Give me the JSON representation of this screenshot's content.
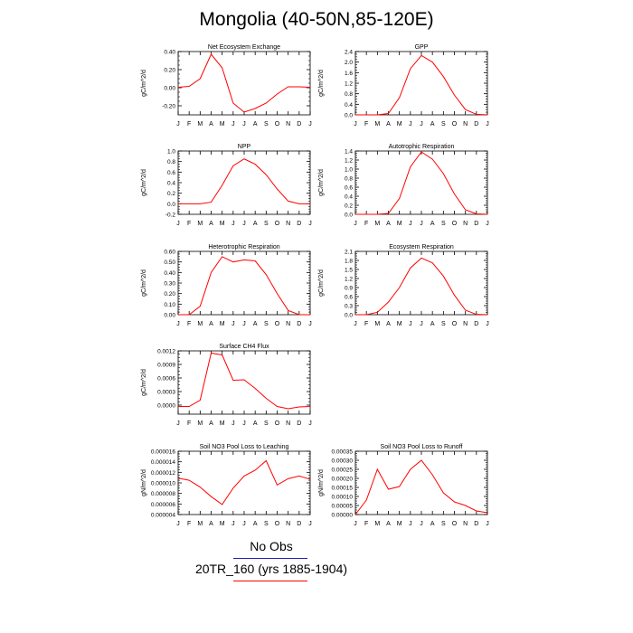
{
  "page_title": "Mongolia (40-50N,85-120E)",
  "legend": {
    "entries": [
      {
        "label": "No Obs",
        "color": "#1f1fb4"
      },
      {
        "label": "20TR_160 (yrs 1885-1904)",
        "color": "#ff0000"
      }
    ]
  },
  "colors": {
    "series": "#ff0000",
    "axis": "#000000"
  },
  "chart_data": [
    {
      "type": "line",
      "title": "Net Ecosystem Exchange",
      "ylabel": "gC/m^2/d",
      "x": [
        "J",
        "F",
        "M",
        "A",
        "M",
        "J",
        "J",
        "A",
        "S",
        "O",
        "N",
        "D",
        "J"
      ],
      "ylim": [
        -0.3,
        0.4
      ],
      "yticks": [
        -0.2,
        0.0,
        0.2,
        0.4
      ],
      "yticklabels": [
        "-0.20",
        "0.00",
        "0.20",
        "0.40"
      ],
      "series": [
        {
          "values": [
            0.005,
            0.015,
            0.1,
            0.37,
            0.22,
            -0.17,
            -0.27,
            -0.23,
            -0.17,
            -0.07,
            0.01,
            0.01,
            0.005
          ]
        }
      ]
    },
    {
      "type": "line",
      "title": "GPP",
      "ylabel": "gC/m^2/d",
      "x": [
        "J",
        "F",
        "M",
        "A",
        "M",
        "J",
        "J",
        "A",
        "S",
        "O",
        "N",
        "D",
        "J"
      ],
      "ylim": [
        0.0,
        2.4
      ],
      "yticks": [
        0.0,
        0.4,
        0.8,
        1.2,
        1.6,
        2.0,
        2.4
      ],
      "yticklabels": [
        "0.0",
        "0.4",
        "0.8",
        "1.2",
        "1.6",
        "2.0",
        "2.4"
      ],
      "series": [
        {
          "values": [
            0.0,
            0.0,
            0.0,
            0.05,
            0.65,
            1.75,
            2.25,
            2.0,
            1.45,
            0.75,
            0.2,
            0.02,
            0.0
          ]
        }
      ]
    },
    {
      "type": "line",
      "title": "NPP",
      "ylabel": "gC/m^2/d",
      "x": [
        "J",
        "F",
        "M",
        "A",
        "M",
        "J",
        "J",
        "A",
        "S",
        "O",
        "N",
        "D",
        "J"
      ],
      "ylim": [
        -0.2,
        1.0
      ],
      "yticks": [
        -0.2,
        0.0,
        0.2,
        0.4,
        0.6,
        0.8,
        1.0
      ],
      "yticklabels": [
        "-0.2",
        "0.0",
        "0.2",
        "0.4",
        "0.6",
        "0.8",
        "1.0"
      ],
      "series": [
        {
          "values": [
            0.0,
            0.0,
            0.0,
            0.03,
            0.35,
            0.72,
            0.85,
            0.75,
            0.55,
            0.28,
            0.05,
            0.0,
            0.0
          ]
        }
      ]
    },
    {
      "type": "line",
      "title": "Autotrophic Respiration",
      "ylabel": "gC/m^2/d",
      "x": [
        "J",
        "F",
        "M",
        "A",
        "M",
        "J",
        "J",
        "A",
        "S",
        "O",
        "N",
        "D",
        "J"
      ],
      "ylim": [
        0.0,
        1.4
      ],
      "yticks": [
        0.0,
        0.2,
        0.4,
        0.6,
        0.8,
        1.0,
        1.2,
        1.4
      ],
      "yticklabels": [
        "0.0",
        "0.2",
        "0.4",
        "0.6",
        "0.8",
        "1.0",
        "1.2",
        "1.4"
      ],
      "series": [
        {
          "values": [
            0.0,
            0.0,
            0.0,
            0.02,
            0.35,
            1.05,
            1.38,
            1.22,
            0.9,
            0.45,
            0.1,
            0.01,
            0.0
          ]
        }
      ]
    },
    {
      "type": "line",
      "title": "Heterotrophic Respiration",
      "ylabel": "gC/m^2/d",
      "x": [
        "J",
        "F",
        "M",
        "A",
        "M",
        "J",
        "J",
        "A",
        "S",
        "O",
        "N",
        "D",
        "J"
      ],
      "ylim": [
        0.0,
        0.6
      ],
      "yticks": [
        0.0,
        0.1,
        0.2,
        0.3,
        0.4,
        0.5,
        0.6
      ],
      "yticklabels": [
        "0.00",
        "0.10",
        "0.20",
        "0.30",
        "0.40",
        "0.50",
        "0.60"
      ],
      "series": [
        {
          "values": [
            0.0,
            0.0,
            0.08,
            0.4,
            0.55,
            0.5,
            0.52,
            0.51,
            0.38,
            0.2,
            0.04,
            0.0,
            0.0
          ]
        }
      ]
    },
    {
      "type": "line",
      "title": "Ecosystem Respiration",
      "ylabel": "gC/m^2/d",
      "x": [
        "J",
        "F",
        "M",
        "A",
        "M",
        "J",
        "J",
        "A",
        "S",
        "O",
        "N",
        "D",
        "J"
      ],
      "ylim": [
        0.0,
        2.1
      ],
      "yticks": [
        0.0,
        0.3,
        0.6,
        0.9,
        1.2,
        1.5,
        1.8,
        2.1
      ],
      "yticklabels": [
        "0.0",
        "0.3",
        "0.6",
        "0.9",
        "1.2",
        "1.5",
        "1.8",
        "2.1"
      ],
      "series": [
        {
          "values": [
            0.0,
            0.0,
            0.08,
            0.42,
            0.9,
            1.55,
            1.88,
            1.72,
            1.28,
            0.65,
            0.15,
            0.01,
            0.0
          ]
        }
      ]
    },
    {
      "type": "line",
      "title": "Surface CH4 Flux",
      "ylabel": "gC/m^2/d",
      "x": [
        "J",
        "F",
        "M",
        "A",
        "M",
        "J",
        "J",
        "A",
        "S",
        "O",
        "N",
        "D",
        "J"
      ],
      "ylim": [
        -0.0002,
        0.0012
      ],
      "yticks": [
        0.0,
        0.0003,
        0.0006,
        0.0009,
        0.0012
      ],
      "yticklabels": [
        "0.0000",
        "0.0003",
        "0.0006",
        "0.0009",
        "0.0012"
      ],
      "series": [
        {
          "values": [
            -3e-05,
            -3e-05,
            0.00011,
            0.00115,
            0.00111,
            0.00055,
            0.00056,
            0.00037,
            0.00015,
            -3e-05,
            -8e-05,
            -4e-05,
            -3e-05
          ]
        }
      ]
    },
    {
      "type": "line",
      "title": "Soil NO3 Pool Loss to Leaching",
      "ylabel": "gN/m^2/d",
      "x": [
        "J",
        "F",
        "M",
        "A",
        "M",
        "J",
        "J",
        "A",
        "S",
        "O",
        "N",
        "D",
        "J"
      ],
      "ylim": [
        4e-06,
        1.6e-05
      ],
      "yticks": [
        4e-06,
        6e-06,
        8e-06,
        1e-05,
        1.2e-05,
        1.4e-05,
        1.6e-05
      ],
      "yticklabels": [
        "0.000004",
        "0.000006",
        "0.000008",
        "0.000010",
        "0.000012",
        "0.000014",
        "0.000016"
      ],
      "series": [
        {
          "values": [
            1.09e-05,
            1.05e-05,
            9.2e-06,
            7.4e-06,
            5.9e-06,
            9e-06,
            1.13e-05,
            1.24e-05,
            1.42e-05,
            9.6e-06,
            1.08e-05,
            1.13e-05,
            1.07e-05
          ]
        }
      ]
    },
    {
      "type": "line",
      "title": "Soil NO3 Pool Loss to Runoff",
      "ylabel": "gN/m^2/d",
      "x": [
        "J",
        "F",
        "M",
        "A",
        "M",
        "J",
        "J",
        "A",
        "S",
        "O",
        "N",
        "D",
        "J"
      ],
      "ylim": [
        0.0,
        0.00035
      ],
      "yticks": [
        0.0,
        5e-05,
        0.0001,
        0.00015,
        0.0002,
        0.00025,
        0.0003,
        0.00035
      ],
      "yticklabels": [
        "0.00000",
        "0.00005",
        "0.00010",
        "0.00015",
        "0.00020",
        "0.00025",
        "0.00030",
        "0.00035"
      ],
      "series": [
        {
          "values": [
            0.0,
            8e-05,
            0.00025,
            0.00014,
            0.000155,
            0.00025,
            0.0003,
            0.00022,
            0.00012,
            7e-05,
            5e-05,
            2e-05,
            1e-05
          ]
        }
      ]
    }
  ]
}
